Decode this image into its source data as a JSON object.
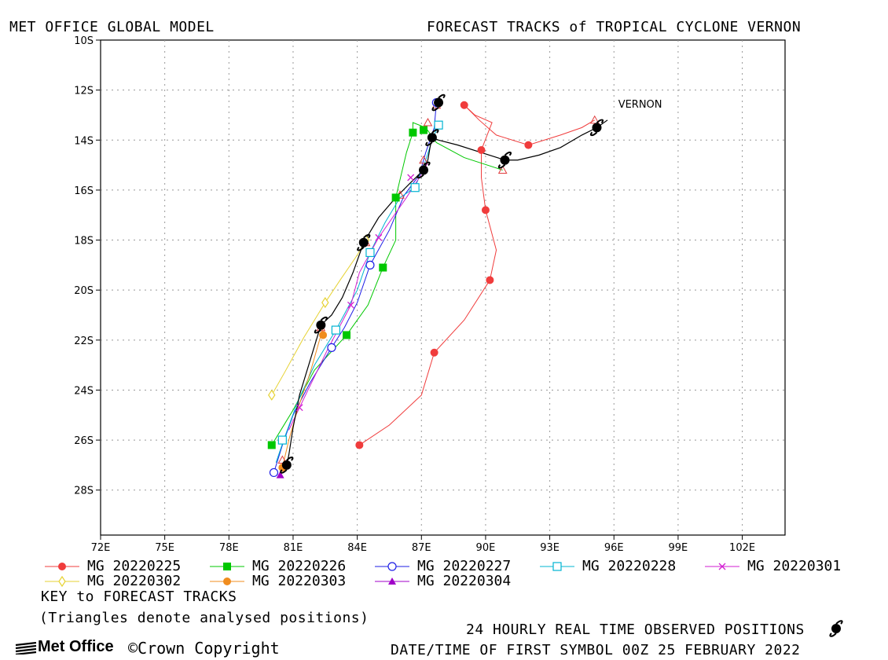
{
  "header": {
    "left_title": "MET OFFICE GLOBAL MODEL",
    "right_title": "FORECAST TRACKS of TROPICAL CYCLONE VERNON"
  },
  "footer": {
    "key_title": "KEY to FORECAST TRACKS",
    "key_note": "(Triangles denote analysed positions)",
    "observed_label": "24 HOURLY REAL TIME OBSERVED POSITIONS",
    "datetime_label": "DATE/TIME OF FIRST SYMBOL 00Z 25 FEBRUARY 2022",
    "logo_text": "Met Office",
    "copyright": "©Crown Copyright"
  },
  "chart_data": {
    "type": "line",
    "x_unit": "longitude degrees east",
    "y_unit": "latitude degrees (negative = south)",
    "xlim": [
      72,
      104
    ],
    "ylim": [
      -29.8,
      -10
    ],
    "x_ticks": [
      72,
      75,
      78,
      81,
      84,
      87,
      90,
      93,
      96,
      99,
      102
    ],
    "x_tick_labels": [
      "72E",
      "75E",
      "78E",
      "81E",
      "84E",
      "87E",
      "90E",
      "93E",
      "96E",
      "99E",
      "102E"
    ],
    "y_ticks": [
      -10,
      -12,
      -14,
      -16,
      -18,
      -20,
      -22,
      -24,
      -26,
      -28
    ],
    "y_tick_labels": [
      "10S",
      "12S",
      "14S",
      "16S",
      "18S",
      "20S",
      "22S",
      "24S",
      "26S",
      "28S"
    ],
    "grid": true,
    "storm_label": "VERNON",
    "storm_label_pos": [
      96.2,
      -12.7
    ],
    "observed": [
      [
        95.7,
        -13.2
      ],
      [
        95.2,
        -13.5
      ],
      [
        94.5,
        -13.8
      ],
      [
        93.5,
        -14.3
      ],
      [
        92.5,
        -14.6
      ],
      [
        91.5,
        -14.8
      ],
      [
        90.9,
        -14.8
      ],
      [
        89.8,
        -14.5
      ],
      [
        88.7,
        -14.2
      ],
      [
        87.8,
        -14.0
      ],
      [
        87.5,
        -13.9
      ],
      [
        87.4,
        -14.3
      ],
      [
        87.3,
        -14.8
      ],
      [
        87.1,
        -15.2
      ],
      [
        86.5,
        -15.7
      ],
      [
        85.8,
        -16.3
      ],
      [
        85.0,
        -17.1
      ],
      [
        84.3,
        -18.1
      ],
      [
        83.8,
        -19.3
      ],
      [
        83.3,
        -20.3
      ],
      [
        82.8,
        -21.0
      ],
      [
        82.3,
        -21.4
      ],
      [
        81.8,
        -22.8
      ],
      [
        81.3,
        -24.2
      ],
      [
        81.0,
        -25.5
      ],
      [
        80.8,
        -26.6
      ],
      [
        80.7,
        -27.0
      ]
    ],
    "observed_symbols": [
      [
        95.2,
        -13.5
      ],
      [
        90.9,
        -14.8
      ],
      [
        87.8,
        -12.5
      ],
      [
        87.5,
        -13.9
      ],
      [
        87.1,
        -15.2
      ],
      [
        84.3,
        -18.1
      ],
      [
        82.3,
        -21.4
      ],
      [
        80.7,
        -27.0
      ]
    ],
    "series": [
      {
        "name": "MG 20220225",
        "color": "#f03c3c",
        "marker": "filled-circle",
        "points": [
          [
            95.1,
            -13.2
          ],
          [
            94.5,
            -13.5
          ],
          [
            93.5,
            -13.8
          ],
          [
            92.0,
            -14.2
          ],
          [
            90.5,
            -13.8
          ],
          [
            89.7,
            -13.2
          ],
          [
            89.0,
            -12.6
          ],
          [
            89.5,
            -13.0
          ],
          [
            90.3,
            -13.3
          ],
          [
            89.8,
            -14.4
          ],
          [
            89.8,
            -15.5
          ],
          [
            90.0,
            -16.8
          ],
          [
            90.5,
            -18.4
          ],
          [
            90.2,
            -19.6
          ],
          [
            89.0,
            -21.2
          ],
          [
            87.6,
            -22.5
          ],
          [
            87.0,
            -24.2
          ],
          [
            85.5,
            -25.4
          ],
          [
            84.1,
            -26.2
          ]
        ],
        "marker_points": [
          [
            92.0,
            -14.2
          ],
          [
            89.0,
            -12.6
          ],
          [
            89.8,
            -14.4
          ],
          [
            90.0,
            -16.8
          ],
          [
            90.2,
            -19.6
          ],
          [
            87.6,
            -22.5
          ],
          [
            84.1,
            -26.2
          ]
        ]
      },
      {
        "name": "MG 20220226",
        "color": "#00c800",
        "marker": "filled-square",
        "points": [
          [
            90.8,
            -15.2
          ],
          [
            89.0,
            -14.7
          ],
          [
            87.7,
            -14.1
          ],
          [
            87.2,
            -13.5
          ],
          [
            86.6,
            -13.3
          ],
          [
            86.6,
            -13.7
          ],
          [
            86.3,
            -14.5
          ],
          [
            85.8,
            -16.3
          ],
          [
            85.8,
            -18.0
          ],
          [
            85.2,
            -19.1
          ],
          [
            84.5,
            -20.6
          ],
          [
            83.5,
            -21.8
          ],
          [
            82.0,
            -23.2
          ],
          [
            81.0,
            -24.8
          ],
          [
            80.5,
            -25.5
          ],
          [
            80.0,
            -26.2
          ]
        ],
        "marker_points": [
          [
            87.1,
            -13.6
          ],
          [
            86.6,
            -13.7
          ],
          [
            85.8,
            -16.3
          ],
          [
            85.2,
            -19.1
          ],
          [
            83.5,
            -21.8
          ],
          [
            80.0,
            -26.2
          ]
        ]
      },
      {
        "name": "MG 20220227",
        "color": "#1e1ee6",
        "marker": "open-circle",
        "points": [
          [
            87.7,
            -12.5
          ],
          [
            87.6,
            -13.5
          ],
          [
            87.2,
            -14.5
          ],
          [
            86.9,
            -15.4
          ],
          [
            86.2,
            -16.2
          ],
          [
            85.5,
            -17.6
          ],
          [
            84.6,
            -19.0
          ],
          [
            84.0,
            -20.5
          ],
          [
            83.4,
            -21.5
          ],
          [
            82.8,
            -22.3
          ],
          [
            81.8,
            -23.7
          ],
          [
            81.0,
            -25.0
          ],
          [
            80.5,
            -26.2
          ],
          [
            80.1,
            -27.3
          ]
        ],
        "marker_points": [
          [
            87.7,
            -12.5
          ],
          [
            84.6,
            -19.0
          ],
          [
            82.8,
            -22.3
          ],
          [
            80.1,
            -27.3
          ]
        ]
      },
      {
        "name": "MG 20220228",
        "color": "#00b4d2",
        "marker": "open-square",
        "points": [
          [
            87.8,
            -13.4
          ],
          [
            87.5,
            -14.0
          ],
          [
            87.2,
            -14.8
          ],
          [
            86.7,
            -15.9
          ],
          [
            86.0,
            -16.3
          ],
          [
            85.3,
            -17.3
          ],
          [
            84.6,
            -18.5
          ],
          [
            84.0,
            -20.0
          ],
          [
            83.0,
            -21.6
          ],
          [
            82.0,
            -23.0
          ],
          [
            81.2,
            -24.5
          ],
          [
            80.6,
            -25.9
          ],
          [
            80.2,
            -26.9
          ]
        ],
        "marker_points": [
          [
            87.8,
            -13.4
          ],
          [
            86.7,
            -15.9
          ],
          [
            84.6,
            -18.5
          ],
          [
            83.0,
            -21.6
          ],
          [
            80.5,
            -26.0
          ]
        ]
      },
      {
        "name": "MG 20220301",
        "color": "#d21ed2",
        "marker": "x",
        "points": [
          [
            87.3,
            -14.9
          ],
          [
            86.9,
            -15.5
          ],
          [
            86.3,
            -16.3
          ],
          [
            85.0,
            -17.9
          ],
          [
            84.1,
            -19.3
          ],
          [
            83.7,
            -20.6
          ],
          [
            82.6,
            -22.4
          ],
          [
            81.3,
            -24.7
          ],
          [
            80.8,
            -25.6
          ]
        ],
        "marker_points": [
          [
            86.5,
            -15.5
          ],
          [
            85.0,
            -17.9
          ],
          [
            83.7,
            -20.6
          ],
          [
            81.3,
            -24.7
          ]
        ]
      },
      {
        "name": "MG 20220302",
        "color": "#e6d232",
        "marker": "open-diamond",
        "points": [
          [
            84.4,
            -18.0
          ],
          [
            84.0,
            -18.6
          ],
          [
            83.2,
            -19.6
          ],
          [
            82.5,
            -20.5
          ],
          [
            81.5,
            -21.9
          ],
          [
            80.6,
            -23.3
          ],
          [
            80.0,
            -24.2
          ]
        ],
        "marker_points": [
          [
            84.4,
            -18.0
          ],
          [
            82.5,
            -20.5
          ],
          [
            80.0,
            -24.2
          ]
        ]
      },
      {
        "name": "MG 20220303",
        "color": "#f08c1e",
        "marker": "filled-circle",
        "points": [
          [
            82.4,
            -21.5
          ],
          [
            82.3,
            -21.8
          ],
          [
            81.8,
            -23.3
          ],
          [
            81.2,
            -24.8
          ],
          [
            80.8,
            -26.0
          ],
          [
            80.5,
            -27.1
          ]
        ],
        "marker_points": [
          [
            82.4,
            -21.8
          ],
          [
            80.5,
            -27.1
          ]
        ]
      },
      {
        "name": "MG 20220304",
        "color": "#a000c8",
        "marker": "filled-triangle",
        "points": [
          [
            80.6,
            -27.0
          ],
          [
            80.4,
            -27.3
          ]
        ],
        "marker_points": [
          [
            80.4,
            -27.4
          ]
        ]
      }
    ],
    "analysed_triangles": [
      [
        95.1,
        -13.2
      ],
      [
        90.8,
        -15.2
      ],
      [
        87.7,
        -12.6
      ],
      [
        87.3,
        -13.3
      ],
      [
        87.1,
        -14.8
      ],
      [
        86.0,
        -16.2
      ],
      [
        84.4,
        -18.1
      ],
      [
        82.3,
        -21.5
      ],
      [
        80.5,
        -26.8
      ]
    ]
  }
}
